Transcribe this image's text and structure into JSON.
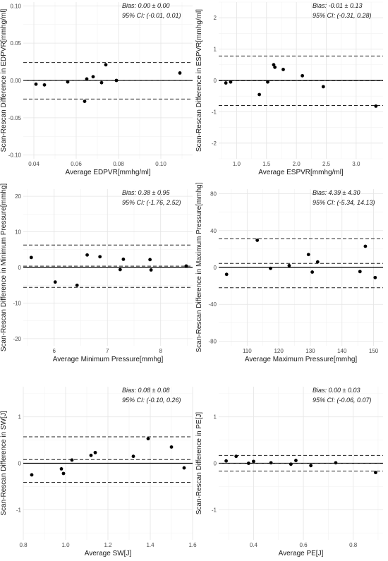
{
  "chart_data": [
    {
      "type": "scatter",
      "xlabel": "Average EDPVR[mmhg/ml]",
      "ylabel": "Scan-Rescan Difference in EDPVR[mmhg/ml]",
      "annotation": [
        "Bias: 0.00 ± 0.00",
        "95% CI: (-0.01, 0.01)"
      ],
      "xlim": [
        0.035,
        0.115
      ],
      "ylim": [
        -0.105,
        0.105
      ],
      "xticks": [
        0.04,
        0.06,
        0.08,
        0.1
      ],
      "xtick_labels": [
        "0.04",
        "0.06",
        "0.08",
        "0.10"
      ],
      "yticks": [
        -0.1,
        -0.05,
        0.0,
        0.05,
        0.1
      ],
      "ytick_labels": [
        "-0.10",
        "-0.05",
        "0.00",
        "0.05",
        "0.10"
      ],
      "bias": 0.0,
      "loa": [
        -0.025,
        0.024
      ],
      "points": [
        [
          0.041,
          -0.005
        ],
        [
          0.045,
          -0.006
        ],
        [
          0.056,
          -0.002
        ],
        [
          0.064,
          -0.028
        ],
        [
          0.065,
          0.002
        ],
        [
          0.068,
          0.005
        ],
        [
          0.072,
          -0.003
        ],
        [
          0.074,
          0.021
        ],
        [
          0.079,
          0.0
        ],
        [
          0.109,
          0.01
        ]
      ],
      "grid": true
    },
    {
      "type": "scatter",
      "xlabel": "Average ESPVR[mmhg/ml]",
      "ylabel": "Scan-Rescan Difference in ESPVR[mmhg/ml]",
      "annotation": [
        "Bias: -0.01 ± 0.13",
        "95% CI: (-0.31, 0.28)"
      ],
      "xlim": [
        0.7,
        3.45
      ],
      "ylim": [
        -2.5,
        2.5
      ],
      "xticks": [
        1.0,
        1.5,
        2.0,
        2.5,
        3.0
      ],
      "xtick_labels": [
        "1.0",
        "1.5",
        "2.0",
        "2.5",
        "3.0"
      ],
      "yticks": [
        -2,
        -1,
        0,
        1,
        2
      ],
      "ytick_labels": [
        "-2",
        "-1",
        "0",
        "1",
        "2"
      ],
      "bias": -0.01,
      "loa": [
        -0.8,
        0.78
      ],
      "points": [
        [
          0.82,
          -0.08
        ],
        [
          0.9,
          -0.05
        ],
        [
          1.38,
          -0.45
        ],
        [
          1.52,
          -0.05
        ],
        [
          1.62,
          0.5
        ],
        [
          1.64,
          0.42
        ],
        [
          1.78,
          0.35
        ],
        [
          2.1,
          0.15
        ],
        [
          2.45,
          -0.2
        ],
        [
          3.33,
          -0.82
        ]
      ],
      "grid": true
    },
    {
      "type": "scatter",
      "xlabel": "Average Minimum Pressure[mmhg]",
      "ylabel": "Scan-Rescan Difference in Minimum Pressure[mmhg]",
      "annotation": [
        "Bias: 0.38 ± 0.95",
        "95% CI: (-1.76, 2.52)"
      ],
      "xlim": [
        5.42,
        8.6
      ],
      "ylim": [
        -22,
        22
      ],
      "xticks": [
        6,
        7,
        8
      ],
      "xtick_labels": [
        "6",
        "7",
        "8"
      ],
      "yticks": [
        -20,
        -10,
        0,
        10,
        20
      ],
      "ytick_labels": [
        "-20",
        "-10",
        "0",
        "10",
        "20"
      ],
      "bias": 0.38,
      "loa": [
        -5.6,
        6.3
      ],
      "points": [
        [
          5.57,
          2.8
        ],
        [
          6.02,
          -4.1
        ],
        [
          6.43,
          -5.0
        ],
        [
          6.62,
          3.5
        ],
        [
          6.86,
          3.0
        ],
        [
          7.24,
          -0.6
        ],
        [
          7.3,
          2.3
        ],
        [
          7.8,
          2.2
        ],
        [
          7.82,
          -0.7
        ],
        [
          8.48,
          0.4
        ]
      ],
      "grid": true
    },
    {
      "type": "scatter",
      "xlabel": "Average Maximum Pressure[mmhg]",
      "ylabel": "Scan-Rescan Difference in Maximum Pressure[mmhg]",
      "annotation": [
        "Bias: 4.39 ± 4.30",
        "95% CI: (-5.34, 14.13)"
      ],
      "xlim": [
        101,
        153
      ],
      "ylim": [
        -85,
        85
      ],
      "xticks": [
        110,
        120,
        130,
        140,
        150
      ],
      "xtick_labels": [
        "110",
        "120",
        "130",
        "140",
        "150"
      ],
      "yticks": [
        -80,
        -40,
        0,
        40,
        80
      ],
      "ytick_labels": [
        "-80",
        "-40",
        "0",
        "40",
        "80"
      ],
      "bias": 4.39,
      "loa": [
        -22,
        31
      ],
      "points": [
        [
          103.5,
          -7.5
        ],
        [
          113.2,
          29.5
        ],
        [
          117.4,
          -1.0
        ],
        [
          123.3,
          2.0
        ],
        [
          129.4,
          14.0
        ],
        [
          130.6,
          -5.0
        ],
        [
          132.3,
          6.0
        ],
        [
          145.7,
          -4.5
        ],
        [
          147.4,
          23.0
        ],
        [
          150.5,
          -11.0
        ]
      ],
      "grid": true
    },
    {
      "type": "scatter",
      "xlabel": "Average SW[J]",
      "ylabel": "Scan-Rescan Difference in SW[J]",
      "annotation": [
        "Bias: 0.08 ± 0.08",
        "95% CI: (-0.10, 0.26)"
      ],
      "xlim": [
        0.8,
        1.6
      ],
      "ylim": [
        -1.65,
        1.65
      ],
      "xticks": [
        0.8,
        1.0,
        1.2,
        1.4,
        1.6
      ],
      "xtick_labels": [
        "0.8",
        "1.0",
        "1.2",
        "1.4",
        "1.6"
      ],
      "yticks": [
        -1,
        0,
        1
      ],
      "ytick_labels": [
        "-1",
        "0",
        "1"
      ],
      "bias": 0.08,
      "loa": [
        -0.41,
        0.57
      ],
      "points": [
        [
          0.84,
          -0.25
        ],
        [
          0.98,
          -0.12
        ],
        [
          0.99,
          -0.22
        ],
        [
          1.03,
          0.07
        ],
        [
          1.12,
          0.17
        ],
        [
          1.14,
          0.23
        ],
        [
          1.32,
          0.15
        ],
        [
          1.39,
          0.53
        ],
        [
          1.5,
          0.35
        ],
        [
          1.56,
          -0.1
        ]
      ],
      "grid": true
    },
    {
      "type": "scatter",
      "xlabel": "Average PE[J]",
      "ylabel": "Scan-Rescan Difference in PE[J]",
      "annotation": [
        "Bias: 0.00 ± 0.03",
        "95% CI: (-0.06, 0.07)"
      ],
      "xlim": [
        0.26,
        0.92
      ],
      "ylim": [
        -1.65,
        1.65
      ],
      "xticks": [
        0.4,
        0.6,
        0.8
      ],
      "xtick_labels": [
        "0.4",
        "0.6",
        "0.8"
      ],
      "yticks": [
        -1,
        0,
        1
      ],
      "ytick_labels": [
        "-1",
        "0",
        "1"
      ],
      "bias": 0.0,
      "loa": [
        -0.17,
        0.17
      ],
      "points": [
        [
          0.29,
          0.05
        ],
        [
          0.33,
          0.15
        ],
        [
          0.38,
          0.0
        ],
        [
          0.4,
          0.04
        ],
        [
          0.47,
          0.01
        ],
        [
          0.55,
          -0.02
        ],
        [
          0.57,
          0.06
        ],
        [
          0.63,
          -0.05
        ],
        [
          0.73,
          0.01
        ],
        [
          0.89,
          -0.2
        ]
      ],
      "grid": true
    }
  ]
}
